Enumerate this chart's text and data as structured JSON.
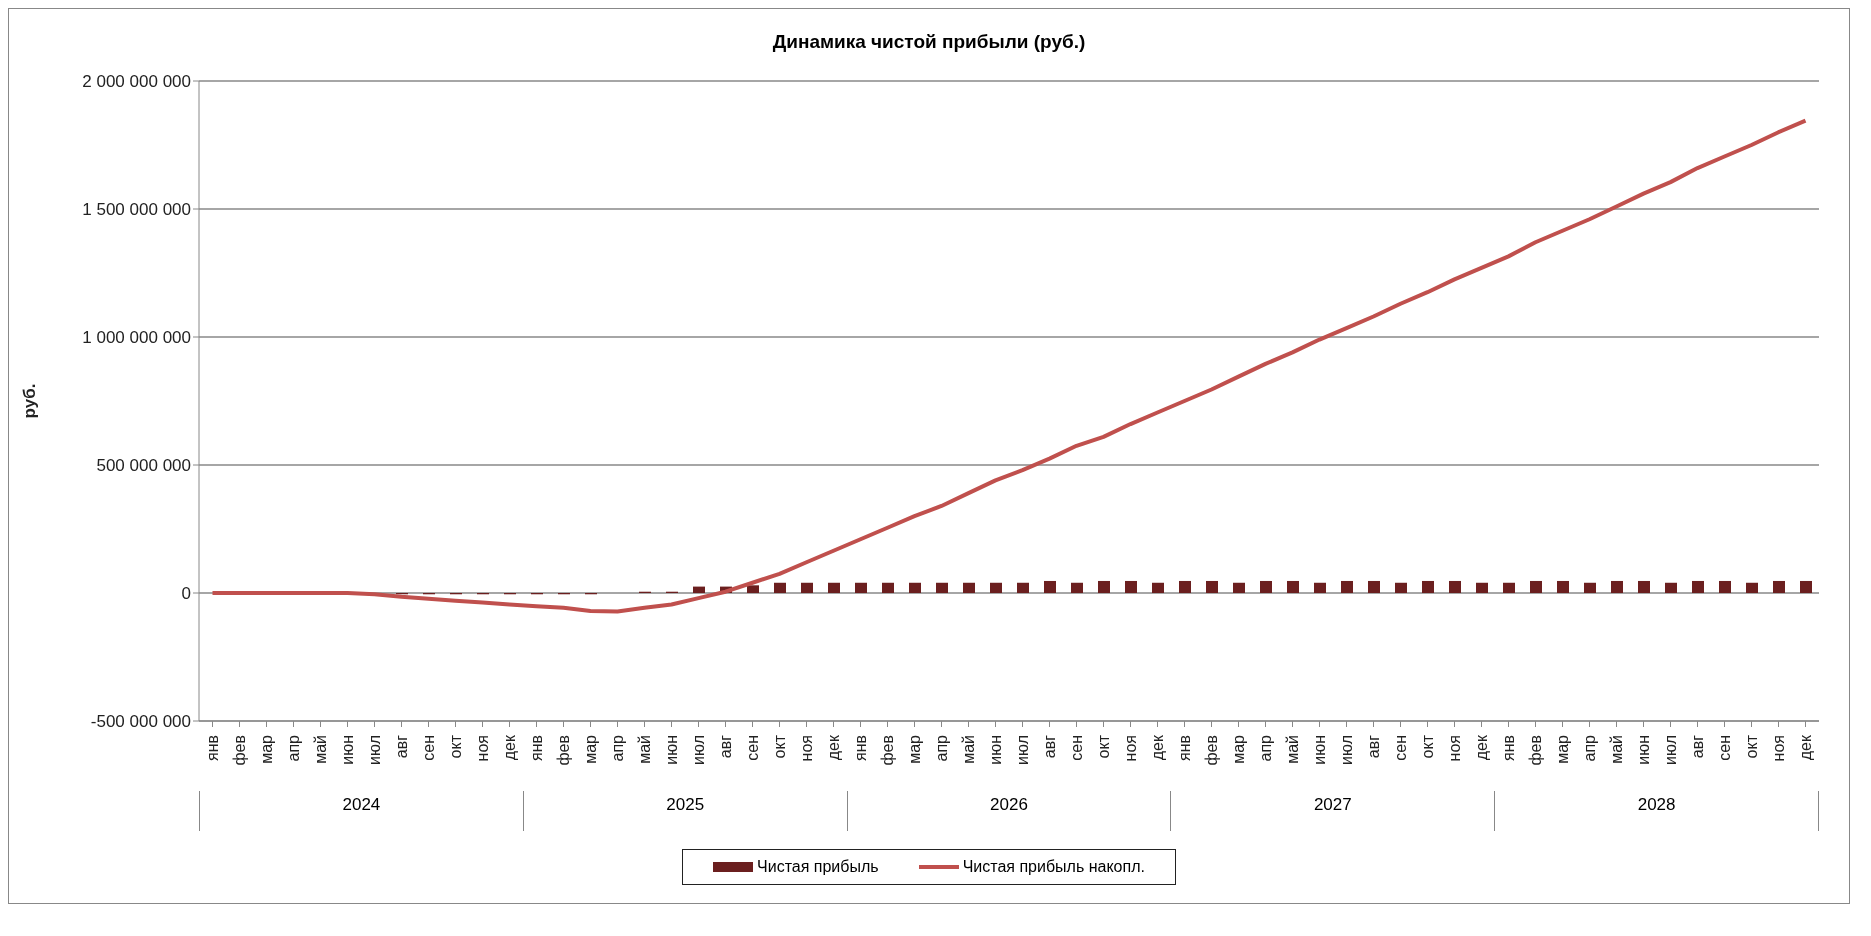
{
  "chart_data": {
    "type": "bar",
    "title": "Динамика чистой прибыли (руб.)",
    "ylabel": "руб.",
    "categories": [
      "янв",
      "фев",
      "мар",
      "апр",
      "май",
      "июн",
      "июл",
      "авг",
      "сен",
      "окт",
      "ноя",
      "дек",
      "янв",
      "фев",
      "мар",
      "апр",
      "май",
      "июн",
      "июл",
      "авг",
      "сен",
      "окт",
      "ноя",
      "дек",
      "янв",
      "фев",
      "мар",
      "апр",
      "май",
      "июн",
      "июл",
      "авг",
      "сен",
      "окт",
      "ноя",
      "дек",
      "янв",
      "фев",
      "мар",
      "апр",
      "май",
      "июн",
      "июл",
      "авг",
      "сен",
      "окт",
      "ноя",
      "дек",
      "янв",
      "фев",
      "мар",
      "апр",
      "май",
      "июн",
      "июл",
      "авг",
      "сен",
      "окт",
      "ноя",
      "дек"
    ],
    "series": [
      {
        "name": "Чистая прибыль",
        "color": "#6b1f1f",
        "values": [
          0,
          0,
          0,
          0,
          0,
          0,
          -2000000,
          -5000000,
          -5000000,
          -5000000,
          -5000000,
          -5000000,
          -5000000,
          -5000000,
          -5000000,
          0,
          5000000,
          5000000,
          25000000,
          25000000,
          30000000,
          40000000,
          40000000,
          40000000,
          40000000,
          40000000,
          40000000,
          40000000,
          40000000,
          40000000,
          40000000,
          47000000,
          40000000,
          47000000,
          47000000,
          40000000,
          47000000,
          47000000,
          40000000,
          47000000,
          47000000,
          40000000,
          47000000,
          47000000,
          40000000,
          47000000,
          47000000,
          40000000,
          40000000,
          47000000,
          47000000,
          40000000,
          47000000,
          47000000,
          40000000,
          47000000,
          47000000,
          40000000,
          47000000,
          47000000
        ]
      },
      {
        "name": "Чистая прибыль накопл.",
        "type": "line",
        "color": "#c0504d",
        "values": [
          0,
          0,
          0,
          0,
          0,
          0,
          -5000000,
          -15000000,
          -22000000,
          -30000000,
          -37000000,
          -45000000,
          -52000000,
          -58000000,
          -70000000,
          -72000000,
          -58000000,
          -45000000,
          -20000000,
          5000000,
          40000000,
          75000000,
          120000000,
          165000000,
          210000000,
          255000000,
          300000000,
          340000000,
          390000000,
          440000000,
          480000000,
          525000000,
          575000000,
          610000000,
          660000000,
          705000000,
          750000000,
          795000000,
          845000000,
          895000000,
          940000000,
          990000000,
          1035000000,
          1080000000,
          1130000000,
          1175000000,
          1225000000,
          1270000000,
          1315000000,
          1370000000,
          1415000000,
          1460000000,
          1510000000,
          1560000000,
          1605000000,
          1660000000,
          1705000000,
          1750000000,
          1800000000,
          1845000000
        ]
      }
    ],
    "ylim": [
      -500000000,
      2000000000
    ],
    "yticks": [
      {
        "value": -500000000,
        "label": "-500 000 000"
      },
      {
        "value": 0,
        "label": "0"
      },
      {
        "value": 500000000,
        "label": "500 000 000"
      },
      {
        "value": 1000000000,
        "label": "1 000 000 000"
      },
      {
        "value": 1500000000,
        "label": "1 500 000 000"
      },
      {
        "value": 2000000000,
        "label": "2 000 000 000"
      }
    ],
    "grid": "y",
    "legend": "bottom",
    "marker": "none",
    "line_style": "solid",
    "annotations": [
      "2024",
      "2025",
      "2026",
      "2027",
      "2028"
    ]
  }
}
